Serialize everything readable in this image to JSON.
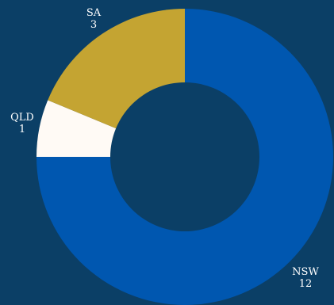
{
  "chart_data": {
    "type": "pie",
    "variant": "donut",
    "title": "",
    "categories": [
      "NSW",
      "QLD",
      "SA"
    ],
    "values": [
      12,
      1,
      3
    ],
    "colors": [
      "#0057b0",
      "#fffaf5",
      "#c4a432"
    ],
    "background": "#0b3f66",
    "hole_color": "#0b3f66",
    "legend": "none",
    "labels_show_name_and_value": true
  }
}
